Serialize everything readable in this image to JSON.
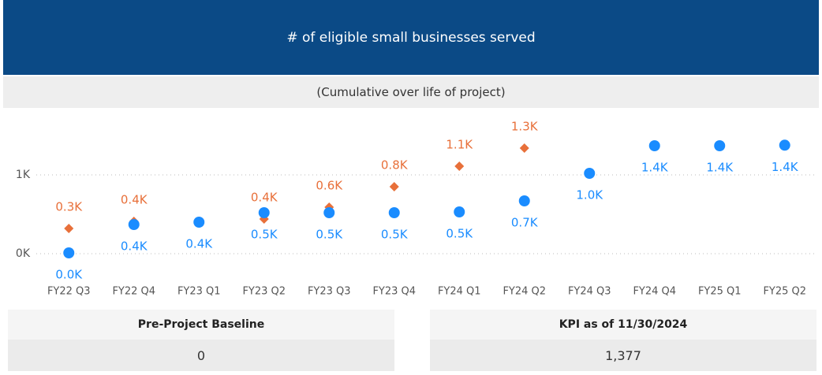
{
  "header": {
    "title": "# of eligible small businesses served",
    "subtitle": "(Cumulative over life of project)"
  },
  "chart_data": {
    "type": "scatter",
    "categories": [
      "FY22 Q3",
      "FY22 Q4",
      "FY23 Q1",
      "FY23 Q2",
      "FY23 Q3",
      "FY23 Q4",
      "FY24 Q1",
      "FY24 Q2",
      "FY24 Q3",
      "FY24 Q4",
      "FY25 Q1",
      "FY25 Q2"
    ],
    "series": [
      {
        "color": "#e8703a",
        "marker": "diamond",
        "values": [
          320,
          410,
          null,
          440,
          590,
          850,
          1110,
          1340,
          null,
          null,
          null,
          null
        ],
        "value_labels": [
          "0.3K",
          "0.4K",
          null,
          "0.4K",
          "0.6K",
          "0.8K",
          "1.1K",
          "1.3K",
          null,
          null,
          null,
          null
        ]
      },
      {
        "color": "#1a8cff",
        "marker": "circle",
        "values": [
          10,
          370,
          400,
          520,
          520,
          520,
          530,
          670,
          1020,
          1370,
          1370,
          1377
        ],
        "value_labels": [
          "0.0K",
          "0.4K",
          "0.4K",
          "0.5K",
          "0.5K",
          "0.5K",
          "0.5K",
          "0.7K",
          "1.0K",
          "1.4K",
          "1.4K",
          "1.4K"
        ]
      }
    ],
    "ylim": [
      -180,
      1820
    ],
    "yticks": [
      {
        "value": 0,
        "label": "0K"
      },
      {
        "value": 1000,
        "label": "1K"
      }
    ],
    "grid": true
  },
  "cards": [
    {
      "label": "Pre-Project Baseline",
      "value": "0"
    },
    {
      "label": "KPI as of 11/30/2024",
      "value": "1,377"
    }
  ]
}
